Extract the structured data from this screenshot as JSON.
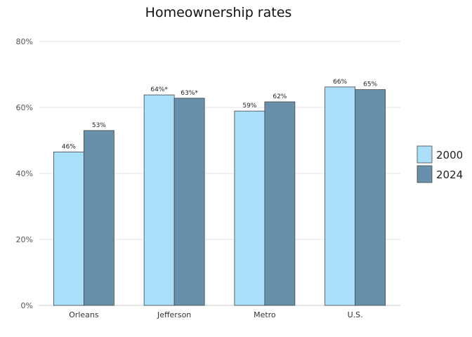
{
  "chart_data": {
    "type": "bar",
    "title": "Homeownership rates",
    "xlabel": "",
    "ylabel": "",
    "categories": [
      "Orleans",
      "Jefferson",
      "Metro",
      "U.S."
    ],
    "series": [
      {
        "name": "2000",
        "values": [
          46.5,
          63.8,
          58.9,
          66.2
        ],
        "labels": [
          "46%",
          "64%*",
          "59%",
          "66%"
        ],
        "color": "#aadff9"
      },
      {
        "name": "2024",
        "values": [
          53,
          62.8,
          61.7,
          65.4
        ],
        "labels": [
          "53%",
          "63%*",
          "62%",
          "65%"
        ],
        "color": "#6890aa"
      }
    ],
    "ylim": [
      0,
      80
    ],
    "yticks": [
      0,
      20,
      40,
      60,
      80
    ],
    "ytick_labels": [
      "0%",
      "20%",
      "40%",
      "60%",
      "80%"
    ],
    "grid": true,
    "legend_position": "right"
  }
}
